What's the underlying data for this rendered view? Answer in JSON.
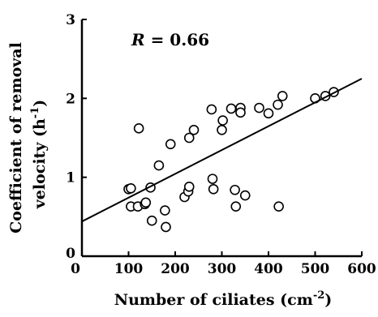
{
  "chart_data": {
    "type": "scatter",
    "title": "",
    "annotation": {
      "symbol": "R",
      "text": " = 0.66"
    },
    "xlabel": "Number of ciliates (cm",
    "xlabel_sup": "-2",
    "xlabel_end": ")",
    "ylabel_line1": "Coefficient of removal",
    "ylabel_line2": "velocity (h",
    "ylabel_sup": "-1",
    "ylabel_end": ")",
    "xlim": [
      0,
      600
    ],
    "ylim": [
      0,
      3
    ],
    "xticks": [
      0,
      100,
      200,
      300,
      400,
      500,
      600
    ],
    "yticks": [
      0,
      1,
      2,
      3
    ],
    "grid": false,
    "marker": "open-circle",
    "points": [
      {
        "x": 100,
        "y": 0.85
      },
      {
        "x": 105,
        "y": 0.86
      },
      {
        "x": 105,
        "y": 0.63
      },
      {
        "x": 120,
        "y": 0.63
      },
      {
        "x": 122,
        "y": 1.62
      },
      {
        "x": 135,
        "y": 0.66
      },
      {
        "x": 137,
        "y": 0.68
      },
      {
        "x": 147,
        "y": 0.87
      },
      {
        "x": 150,
        "y": 0.45
      },
      {
        "x": 165,
        "y": 1.15
      },
      {
        "x": 178,
        "y": 0.58
      },
      {
        "x": 180,
        "y": 0.37
      },
      {
        "x": 190,
        "y": 1.42
      },
      {
        "x": 220,
        "y": 0.75
      },
      {
        "x": 228,
        "y": 0.82
      },
      {
        "x": 230,
        "y": 0.88
      },
      {
        "x": 230,
        "y": 1.5
      },
      {
        "x": 240,
        "y": 1.6
      },
      {
        "x": 278,
        "y": 1.86
      },
      {
        "x": 280,
        "y": 0.98
      },
      {
        "x": 282,
        "y": 0.85
      },
      {
        "x": 300,
        "y": 1.6
      },
      {
        "x": 302,
        "y": 1.72
      },
      {
        "x": 320,
        "y": 1.87
      },
      {
        "x": 328,
        "y": 0.84
      },
      {
        "x": 330,
        "y": 0.63
      },
      {
        "x": 340,
        "y": 1.88
      },
      {
        "x": 340,
        "y": 1.82
      },
      {
        "x": 350,
        "y": 0.77
      },
      {
        "x": 380,
        "y": 1.88
      },
      {
        "x": 400,
        "y": 1.81
      },
      {
        "x": 420,
        "y": 1.92
      },
      {
        "x": 422,
        "y": 0.63
      },
      {
        "x": 430,
        "y": 2.03
      },
      {
        "x": 500,
        "y": 2.0
      },
      {
        "x": 522,
        "y": 2.03
      },
      {
        "x": 540,
        "y": 2.08
      }
    ],
    "regression_line": {
      "x": [
        0,
        600
      ],
      "y": [
        0.44,
        2.25
      ]
    }
  }
}
